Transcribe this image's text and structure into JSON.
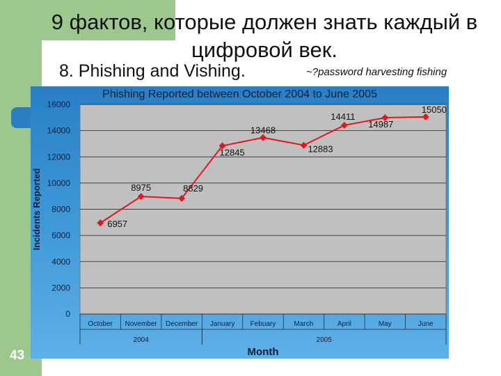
{
  "slide": {
    "title": "9 фактов, которые должен знать каждый в цифровой век.",
    "subtitle": "8. Phishing and Vishing.",
    "note": "~?password harvesting fishing",
    "number": "43"
  },
  "colors": {
    "sidebar": "#9dc88d",
    "plot_bg": "#c0c0c0",
    "line": "#e8141c",
    "frame": "#2a7fc4"
  },
  "chart_data": {
    "type": "line",
    "title": "Phishing Reported between October 2004 to June 2005",
    "xlabel": "Month",
    "ylabel": "Incidents Reported",
    "categories": [
      "October",
      "November",
      "December",
      "January",
      "Febuary",
      "March",
      "April",
      "May",
      "June"
    ],
    "year_groups": [
      {
        "label": "2004",
        "from": 0,
        "to": 2
      },
      {
        "label": "2005",
        "from": 3,
        "to": 8
      }
    ],
    "series": [
      {
        "values": [
          6957,
          8975,
          8829,
          12845,
          13468,
          12883,
          14411,
          14987,
          15050
        ]
      }
    ],
    "data_labels": [
      "6957",
      "8975",
      "8829",
      "12845",
      "13468",
      "12883",
      "14411",
      "14987",
      "15050"
    ],
    "y_ticks": [
      "0",
      "2000",
      "4000",
      "6000",
      "8000",
      "10000",
      "12000",
      "14000",
      "16000"
    ],
    "ylim": [
      0,
      16000
    ],
    "grid": true,
    "legend": "none"
  }
}
